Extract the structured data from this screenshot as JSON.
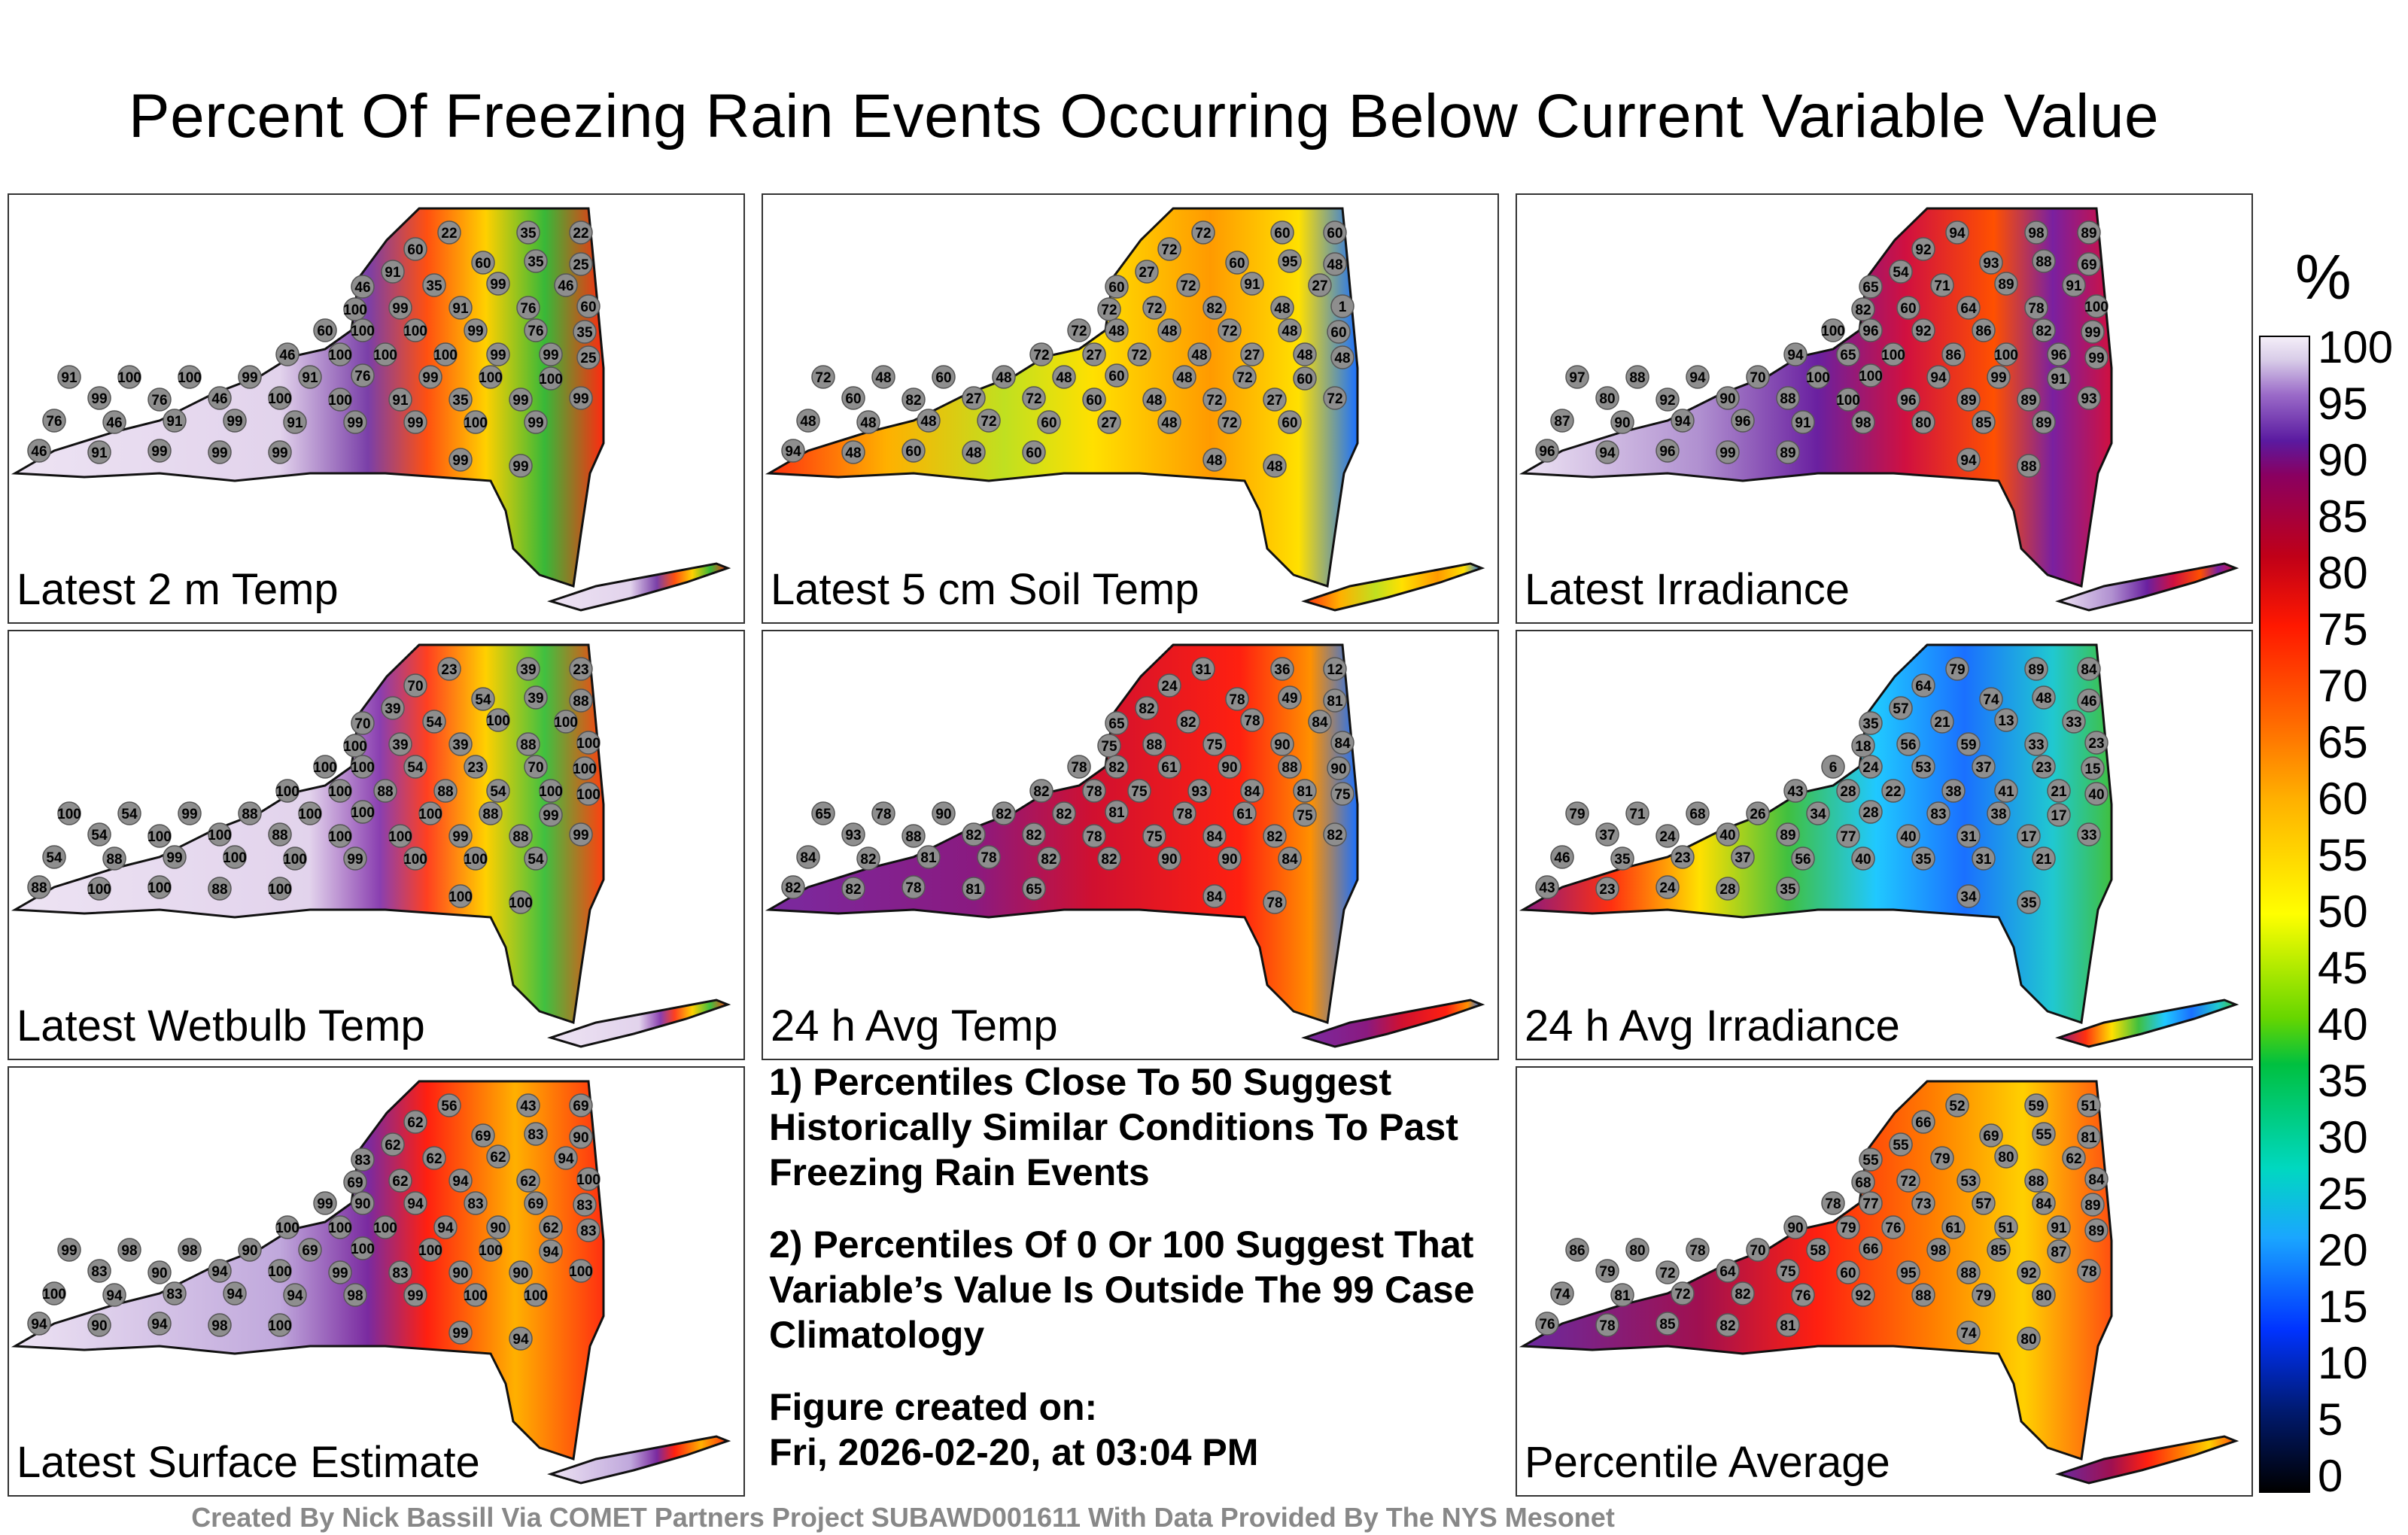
{
  "figure": {
    "title": "Percent Of Freezing Rain Events Occurring Below Current Variable Value",
    "credit": "Created By Nick Bassill Via COMET Partners Project SUBAWD001611 With Data Provided By The NYS Mesonet"
  },
  "panels": [
    {
      "label": "Latest 2 m Temp",
      "labels": [
        "22",
        "35",
        "22",
        "60",
        "91",
        "60",
        "35",
        "25",
        "46",
        "35",
        "99",
        "46",
        "100",
        "99",
        "91",
        "76",
        "60",
        "60",
        "100",
        "100",
        "99",
        "76",
        "35",
        "46",
        "100",
        "100",
        "100",
        "99",
        "99",
        "25",
        "91",
        "100",
        "100",
        "99",
        "91",
        "76",
        "99",
        "100",
        "100",
        "99",
        "76",
        "46",
        "100",
        "100",
        "91",
        "35",
        "99",
        "99",
        "76",
        "46",
        "91",
        "99",
        "91",
        "99",
        "99",
        "100",
        "99",
        "46",
        "91",
        "99",
        "99",
        "99",
        "99",
        "99"
      ]
    },
    {
      "label": "Latest 5 cm Soil Temp",
      "labels": [
        "72",
        "60",
        "60",
        "72",
        "27",
        "60",
        "95",
        "48",
        "60",
        "72",
        "91",
        "27",
        "72",
        "72",
        "82",
        "48",
        "1",
        "72",
        "48",
        "48",
        "72",
        "48",
        "60",
        "72",
        "27",
        "72",
        "48",
        "27",
        "48",
        "48",
        "72",
        "48",
        "60",
        "48",
        "48",
        "60",
        "48",
        "72",
        "60",
        "60",
        "82",
        "27",
        "72",
        "60",
        "48",
        "72",
        "27",
        "72",
        "48",
        "48",
        "48",
        "72",
        "60",
        "27",
        "48",
        "72",
        "60",
        "94",
        "48",
        "60",
        "48",
        "60",
        "48",
        "48"
      ]
    },
    {
      "label": "Latest Irradiance",
      "labels": [
        "94",
        "98",
        "89",
        "92",
        "54",
        "93",
        "88",
        "69",
        "65",
        "71",
        "89",
        "91",
        "82",
        "60",
        "64",
        "78",
        "100",
        "100",
        "96",
        "92",
        "86",
        "82",
        "99",
        "94",
        "65",
        "100",
        "86",
        "100",
        "96",
        "99",
        "97",
        "88",
        "94",
        "70",
        "100",
        "100",
        "94",
        "99",
        "91",
        "80",
        "92",
        "90",
        "88",
        "100",
        "96",
        "89",
        "89",
        "93",
        "87",
        "90",
        "94",
        "96",
        "91",
        "98",
        "80",
        "85",
        "89",
        "96",
        "94",
        "96",
        "99",
        "89",
        "94",
        "88"
      ]
    },
    {
      "label": "Latest Wetbulb Temp",
      "labels": [
        "23",
        "39",
        "23",
        "70",
        "39",
        "54",
        "39",
        "88",
        "70",
        "54",
        "100",
        "100",
        "100",
        "39",
        "39",
        "88",
        "100",
        "100",
        "100",
        "54",
        "23",
        "70",
        "100",
        "100",
        "100",
        "88",
        "88",
        "54",
        "100",
        "100",
        "100",
        "54",
        "99",
        "88",
        "100",
        "100",
        "100",
        "88",
        "99",
        "54",
        "100",
        "100",
        "88",
        "100",
        "100",
        "99",
        "88",
        "99",
        "54",
        "88",
        "99",
        "100",
        "100",
        "99",
        "100",
        "100",
        "54",
        "88",
        "100",
        "100",
        "88",
        "100",
        "100",
        "100"
      ]
    },
    {
      "label": "24 h Avg Temp",
      "labels": [
        "31",
        "36",
        "12",
        "24",
        "82",
        "78",
        "49",
        "81",
        "65",
        "82",
        "78",
        "84",
        "75",
        "88",
        "75",
        "90",
        "84",
        "78",
        "82",
        "61",
        "90",
        "88",
        "90",
        "82",
        "78",
        "75",
        "93",
        "84",
        "81",
        "75",
        "65",
        "78",
        "90",
        "82",
        "82",
        "81",
        "78",
        "61",
        "75",
        "93",
        "88",
        "82",
        "82",
        "78",
        "75",
        "84",
        "82",
        "82",
        "84",
        "82",
        "81",
        "78",
        "82",
        "82",
        "90",
        "90",
        "84",
        "82",
        "82",
        "78",
        "81",
        "65",
        "84",
        "78"
      ]
    },
    {
      "label": "24 h Avg Irradiance",
      "labels": [
        "79",
        "89",
        "84",
        "64",
        "57",
        "74",
        "48",
        "46",
        "35",
        "21",
        "13",
        "33",
        "18",
        "56",
        "59",
        "33",
        "23",
        "6",
        "24",
        "53",
        "37",
        "23",
        "15",
        "43",
        "28",
        "22",
        "38",
        "41",
        "21",
        "40",
        "79",
        "71",
        "68",
        "26",
        "34",
        "28",
        "83",
        "38",
        "17",
        "37",
        "24",
        "40",
        "89",
        "77",
        "40",
        "31",
        "17",
        "33",
        "46",
        "35",
        "23",
        "37",
        "56",
        "40",
        "35",
        "31",
        "21",
        "43",
        "23",
        "24",
        "28",
        "35",
        "34",
        "35"
      ]
    },
    {
      "label": "Latest Surface Estimate",
      "labels": [
        "56",
        "43",
        "69",
        "62",
        "62",
        "69",
        "83",
        "90",
        "83",
        "62",
        "62",
        "94",
        "69",
        "62",
        "94",
        "62",
        "100",
        "99",
        "90",
        "94",
        "83",
        "69",
        "83",
        "100",
        "100",
        "100",
        "94",
        "90",
        "62",
        "83",
        "99",
        "98",
        "98",
        "90",
        "69",
        "100",
        "100",
        "100",
        "94",
        "83",
        "90",
        "94",
        "100",
        "99",
        "83",
        "90",
        "90",
        "100",
        "100",
        "94",
        "83",
        "94",
        "94",
        "98",
        "99",
        "100",
        "100",
        "94",
        "90",
        "94",
        "98",
        "100",
        "99",
        "94"
      ]
    },
    {
      "label": "Percentile Average",
      "labels": [
        "52",
        "59",
        "51",
        "66",
        "55",
        "69",
        "55",
        "81",
        "55",
        "79",
        "80",
        "62",
        "68",
        "72",
        "53",
        "88",
        "84",
        "78",
        "77",
        "73",
        "57",
        "84",
        "89",
        "90",
        "79",
        "76",
        "61",
        "51",
        "91",
        "89",
        "86",
        "80",
        "78",
        "70",
        "58",
        "66",
        "98",
        "85",
        "87",
        "79",
        "72",
        "64",
        "75",
        "60",
        "95",
        "88",
        "92",
        "78",
        "74",
        "81",
        "72",
        "82",
        "76",
        "92",
        "88",
        "79",
        "80",
        "76",
        "78",
        "85",
        "82",
        "81",
        "74",
        "80"
      ]
    }
  ],
  "notes": {
    "note1": "1) Percentiles Close To 50 Suggest Historically Similar Conditions To Past Freezing Rain Events",
    "note2": "2) Percentiles Of 0 Or 100 Suggest That Variable’s Value Is Outside The 99 Case Climatology",
    "created_label": "Figure created on:",
    "created_date": "Fri, 2026-02-20, at 03:04 PM"
  },
  "colorbar": {
    "unit": "%",
    "ticks": [
      "100",
      "95",
      "90",
      "85",
      "80",
      "75",
      "70",
      "65",
      "60",
      "55",
      "50",
      "45",
      "40",
      "35",
      "30",
      "25",
      "20",
      "15",
      "10",
      "5",
      "0"
    ]
  }
}
